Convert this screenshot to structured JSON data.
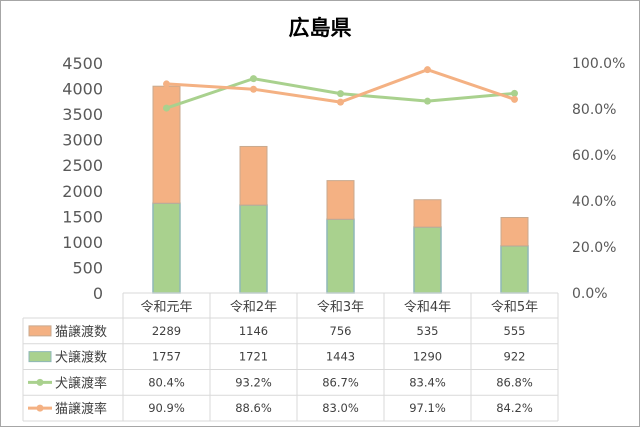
{
  "chart_data": {
    "type": "bar",
    "title": "広島県",
    "categories": [
      "令和元年",
      "令和2年",
      "令和3年",
      "令和4年",
      "令和5年"
    ],
    "ylim": [
      0,
      4500
    ],
    "y_ticks": [
      "0",
      "500",
      "1000",
      "1500",
      "2000",
      "2500",
      "3000",
      "3500",
      "4000",
      "4500"
    ],
    "y2lim": [
      0,
      100
    ],
    "y2_ticks": [
      "0.0%",
      "20.0%",
      "40.0%",
      "60.0%",
      "80.0%",
      "100.0%"
    ],
    "stacked": true,
    "legend": "table-bottom",
    "series": [
      {
        "name": "猫譲渡数",
        "kind": "bar",
        "axis": "left",
        "color": "#f4b183",
        "values": [
          2289,
          1146,
          756,
          535,
          555
        ],
        "labels": [
          "2289",
          "1146",
          "756",
          "535",
          "555"
        ]
      },
      {
        "name": "犬譲渡数",
        "kind": "bar",
        "axis": "left",
        "color": "#a9d18e",
        "values": [
          1757,
          1721,
          1443,
          1290,
          922
        ],
        "labels": [
          "1757",
          "1721",
          "1443",
          "1290",
          "922"
        ]
      },
      {
        "name": "犬譲渡率",
        "kind": "line",
        "axis": "right",
        "color": "#a9d18e",
        "values": [
          80.4,
          93.2,
          86.7,
          83.4,
          86.8
        ],
        "labels": [
          "80.4%",
          "93.2%",
          "86.7%",
          "83.4%",
          "86.8%"
        ]
      },
      {
        "name": "猫譲渡率",
        "kind": "line",
        "axis": "right",
        "color": "#f4b183",
        "values": [
          90.9,
          88.6,
          83.0,
          97.1,
          84.2
        ],
        "labels": [
          "90.9%",
          "88.6%",
          "83.0%",
          "97.1%",
          "84.2%"
        ]
      }
    ]
  }
}
